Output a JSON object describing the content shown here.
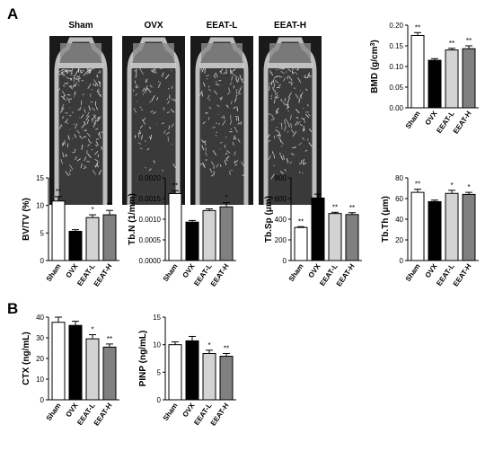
{
  "panels": {
    "a": "A",
    "b": "B"
  },
  "micro_ct": [
    {
      "label": "Sham"
    },
    {
      "label": "OVX"
    },
    {
      "label": "EEAT-L"
    },
    {
      "label": "EEAT-H"
    }
  ],
  "colors": {
    "Sham": "#ffffff",
    "OVX": "#000000",
    "EEAT-L": "#d3d3d3",
    "EEAT-H": "#808080"
  },
  "chart_data": [
    {
      "id": "bmd",
      "type": "bar",
      "categories": [
        "Sham",
        "OVX",
        "EEAT-L",
        "EEAT-H"
      ],
      "values": [
        0.175,
        0.115,
        0.14,
        0.143
      ],
      "errors": [
        0.007,
        0.004,
        0.004,
        0.007
      ],
      "sig": [
        "**",
        "",
        "**",
        "**"
      ],
      "ylabel": "BMD (g/cm3)",
      "ylim": [
        0,
        0.2
      ],
      "yticks": [
        "0.00",
        "0.05",
        "0.10",
        "0.15",
        "0.20"
      ]
    },
    {
      "id": "bvtv",
      "type": "bar",
      "categories": [
        "Sham",
        "OVX",
        "EEAT-L",
        "EEAT-H"
      ],
      "values": [
        10.8,
        5.3,
        7.8,
        8.3
      ],
      "errors": [
        0.8,
        0.3,
        0.5,
        0.8
      ],
      "sig": [
        "**",
        "",
        "*",
        "**"
      ],
      "ylabel": "BV/TV (%)",
      "ylim": [
        0,
        15
      ],
      "yticks": [
        "0",
        "5",
        "10",
        "15"
      ]
    },
    {
      "id": "tbn",
      "type": "bar",
      "categories": [
        "Sham",
        "OVX",
        "EEAT-L",
        "EEAT-H"
      ],
      "values": [
        0.00162,
        0.00093,
        0.00121,
        0.0013
      ],
      "errors": [
        7e-05,
        4e-05,
        4e-05,
        0.0001
      ],
      "sig": [
        "**",
        "",
        "",
        "*"
      ],
      "ylabel": "Tb.N (1/mm)",
      "ylim": [
        0,
        0.002
      ],
      "yticks": [
        "0.0000",
        "0.0005",
        "0.0010",
        "0.0015",
        "0.0020"
      ]
    },
    {
      "id": "tbsp",
      "type": "bar",
      "categories": [
        "Sham",
        "OVX",
        "EEAT-L",
        "EEAT-H"
      ],
      "values": [
        320,
        605,
        455,
        445
      ],
      "errors": [
        8,
        38,
        12,
        18
      ],
      "sig": [
        "**",
        "",
        "**",
        "**"
      ],
      "ylabel": "Tb.Sp (μm)",
      "ylim": [
        0,
        800
      ],
      "yticks": [
        "0",
        "200",
        "400",
        "600",
        "800"
      ]
    },
    {
      "id": "tbth",
      "type": "bar",
      "categories": [
        "Sham",
        "OVX",
        "EEAT-L",
        "EEAT-H"
      ],
      "values": [
        66,
        57,
        65,
        64
      ],
      "errors": [
        3,
        1.5,
        3,
        2
      ],
      "sig": [
        "**",
        "",
        "*",
        "*"
      ],
      "ylabel": "Tb.Th (μm)",
      "ylim": [
        0,
        80
      ],
      "yticks": [
        "0",
        "20",
        "40",
        "60",
        "80"
      ]
    },
    {
      "id": "ctx",
      "type": "bar",
      "categories": [
        "Sham",
        "OVX",
        "EEAT-L",
        "EEAT-H"
      ],
      "values": [
        37.5,
        36,
        29.5,
        25.5
      ],
      "errors": [
        2.5,
        2,
        2,
        1.5
      ],
      "sig": [
        "",
        "",
        "*",
        "**"
      ],
      "ylabel": "CTX (ng/mL)",
      "ylim": [
        0,
        40
      ],
      "yticks": [
        "0",
        "10",
        "20",
        "30",
        "40"
      ]
    },
    {
      "id": "pinp",
      "type": "bar",
      "categories": [
        "Sham",
        "OVX",
        "EEAT-L",
        "EEAT-H"
      ],
      "values": [
        10,
        10.7,
        8.4,
        7.9
      ],
      "errors": [
        0.5,
        0.8,
        0.6,
        0.5
      ],
      "sig": [
        "",
        "",
        "*",
        "**"
      ],
      "ylabel": "PINP (ng/mL)",
      "ylim": [
        0,
        15
      ],
      "yticks": [
        "0",
        "5",
        "10",
        "15"
      ]
    }
  ]
}
